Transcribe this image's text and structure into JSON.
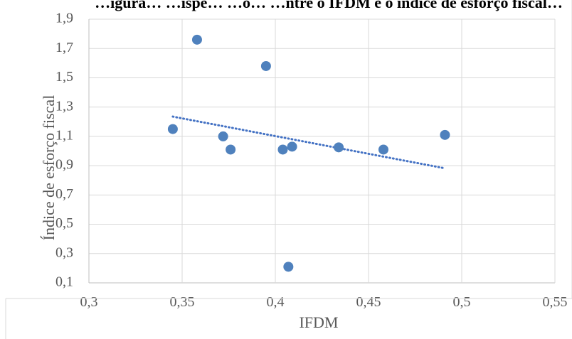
{
  "chart_data": {
    "type": "scatter",
    "title": "…igura… …ispe… …o… …ntre o IFDM e o índice de esforço fiscal…",
    "xlabel": "IFDM",
    "ylabel": "Índice de esforço fiscal",
    "xlim": [
      0.3,
      0.55
    ],
    "ylim": [
      0.1,
      1.9
    ],
    "x_ticks": [
      0.3,
      0.35,
      0.4,
      0.45,
      0.5,
      0.55
    ],
    "x_tick_labels": [
      "0,3",
      "0,35",
      "0,4",
      "0,45",
      "0,5",
      "0,55"
    ],
    "y_ticks": [
      0.1,
      0.3,
      0.5,
      0.7,
      0.9,
      1.1,
      1.3,
      1.5,
      1.7,
      1.9
    ],
    "y_tick_labels": [
      "0,1",
      "0,3",
      "0,5",
      "0,7",
      "0,9",
      "1,1",
      "1,3",
      "1,5",
      "1,7",
      "1,9"
    ],
    "grid": true,
    "marker_color": "#4f81bd",
    "trendline": {
      "type": "linear",
      "color": "#4472c4",
      "style": "dotted",
      "x": [
        0.345,
        0.491
      ],
      "y": [
        1.235,
        0.882
      ]
    },
    "points": [
      {
        "x": 0.345,
        "y": 1.15
      },
      {
        "x": 0.358,
        "y": 1.76
      },
      {
        "x": 0.372,
        "y": 1.1
      },
      {
        "x": 0.376,
        "y": 1.01
      },
      {
        "x": 0.395,
        "y": 1.58
      },
      {
        "x": 0.404,
        "y": 1.01
      },
      {
        "x": 0.407,
        "y": 0.21
      },
      {
        "x": 0.409,
        "y": 1.03
      },
      {
        "x": 0.434,
        "y": 1.025
      },
      {
        "x": 0.458,
        "y": 1.01
      },
      {
        "x": 0.491,
        "y": 1.11
      }
    ]
  }
}
